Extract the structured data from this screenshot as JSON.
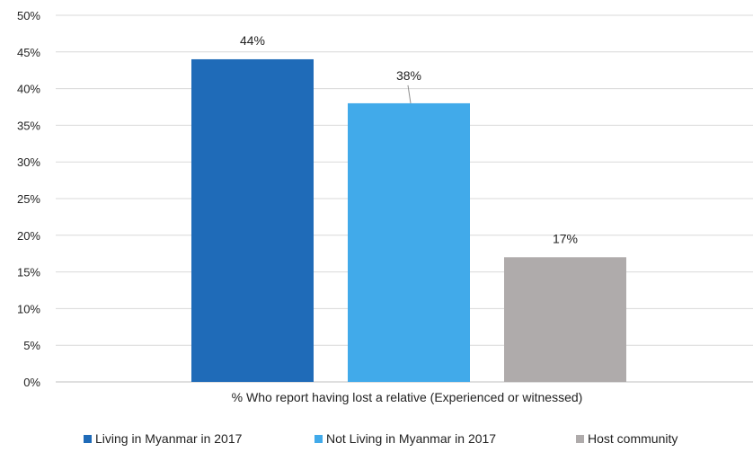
{
  "chart_data": {
    "type": "bar",
    "categories": [
      "% Who report having lost a relative (Experienced or witnessed)"
    ],
    "series": [
      {
        "name": "Living in Myanmar in 2017",
        "values": [
          44
        ],
        "color": "#1f6bb8",
        "label": "44%"
      },
      {
        "name": "Not Living in Myanmar in 2017",
        "values": [
          38
        ],
        "color": "#41aaea",
        "label": "38%"
      },
      {
        "name": "Host community",
        "values": [
          17
        ],
        "color": "#afabab",
        "label": "17%"
      }
    ],
    "ylim": [
      0,
      50
    ],
    "yticks": [
      "0%",
      "5%",
      "10%",
      "15%",
      "20%",
      "25%",
      "30%",
      "35%",
      "40%",
      "45%",
      "50%"
    ],
    "xlabel": "% Who report having lost a relative (Experienced or witnessed)",
    "grid": true,
    "legend_position": "bottom"
  }
}
